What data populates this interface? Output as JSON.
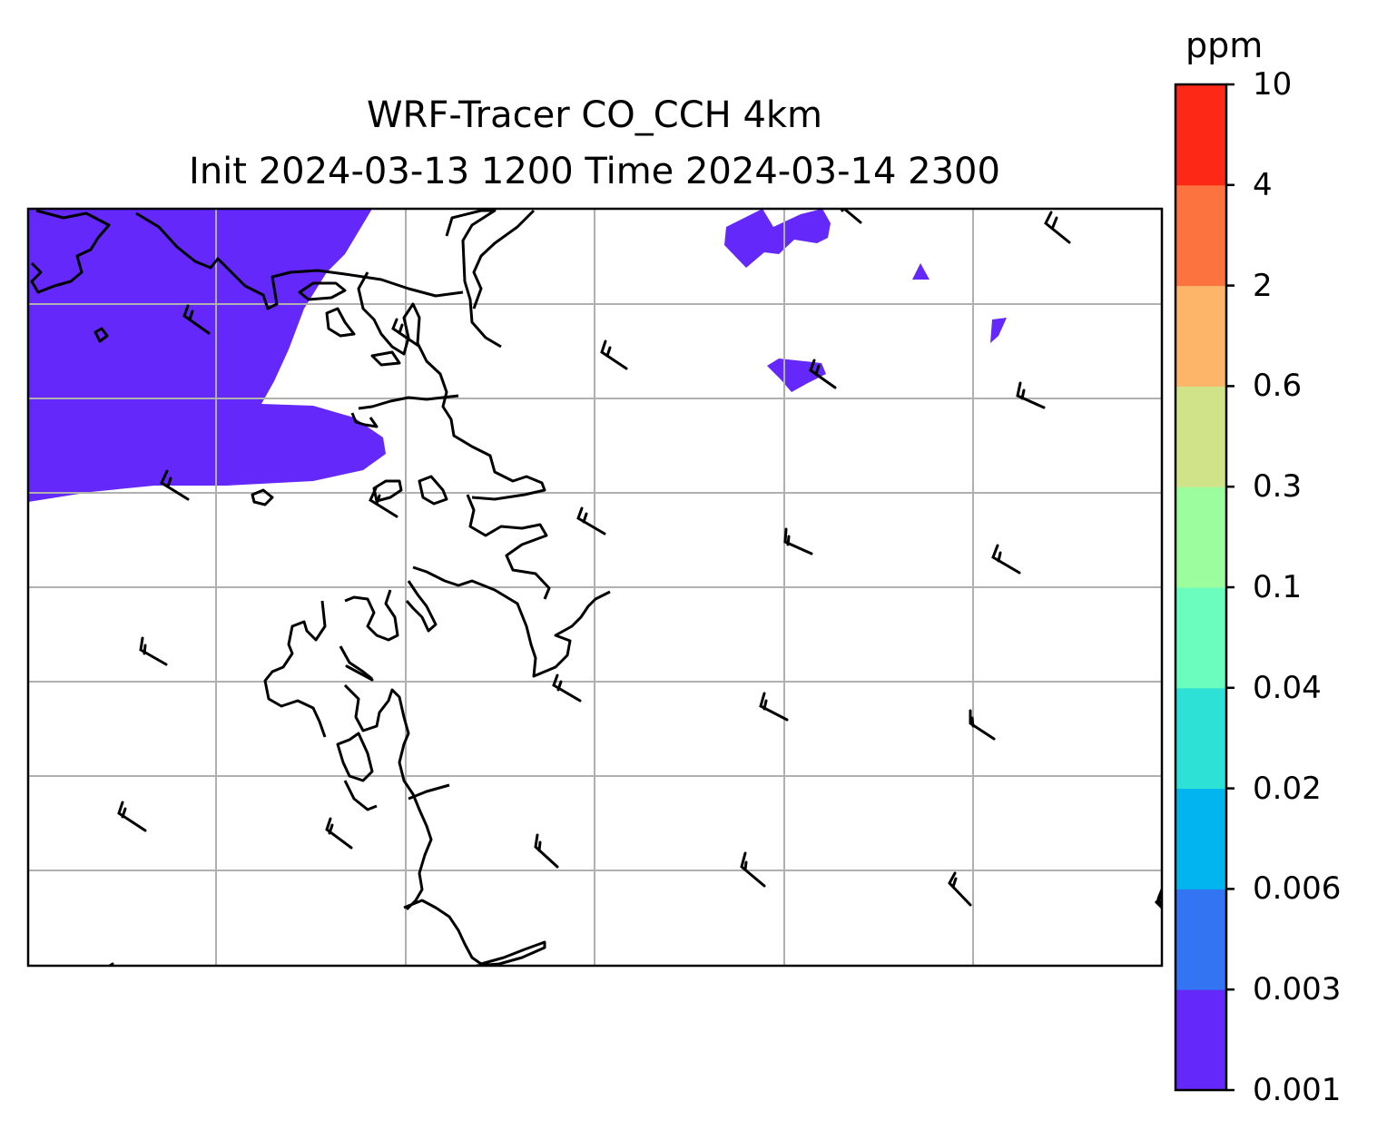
{
  "title": {
    "line1": "WRF-Tracer CO_CCH 4km",
    "line2": "Init 2024-03-13 1200 Time 2024-03-14 2300"
  },
  "colorbar": {
    "unit": "ppm",
    "levels": [
      "0.001",
      "0.003",
      "0.006",
      "0.02",
      "0.04",
      "0.1",
      "0.3",
      "0.6",
      "2",
      "4",
      "10"
    ],
    "colors": [
      "#6428fa",
      "#3374f2",
      "#02b5ee",
      "#2ee1d6",
      "#6bfdbe",
      "#9cfd9e",
      "#d1e389",
      "#fdb56a",
      "#fd733f",
      "#fe2817"
    ]
  },
  "map": {
    "gridlines": true,
    "plume_color": "#6428fa",
    "coastline_color": "#000000",
    "wind_barbs": true
  }
}
